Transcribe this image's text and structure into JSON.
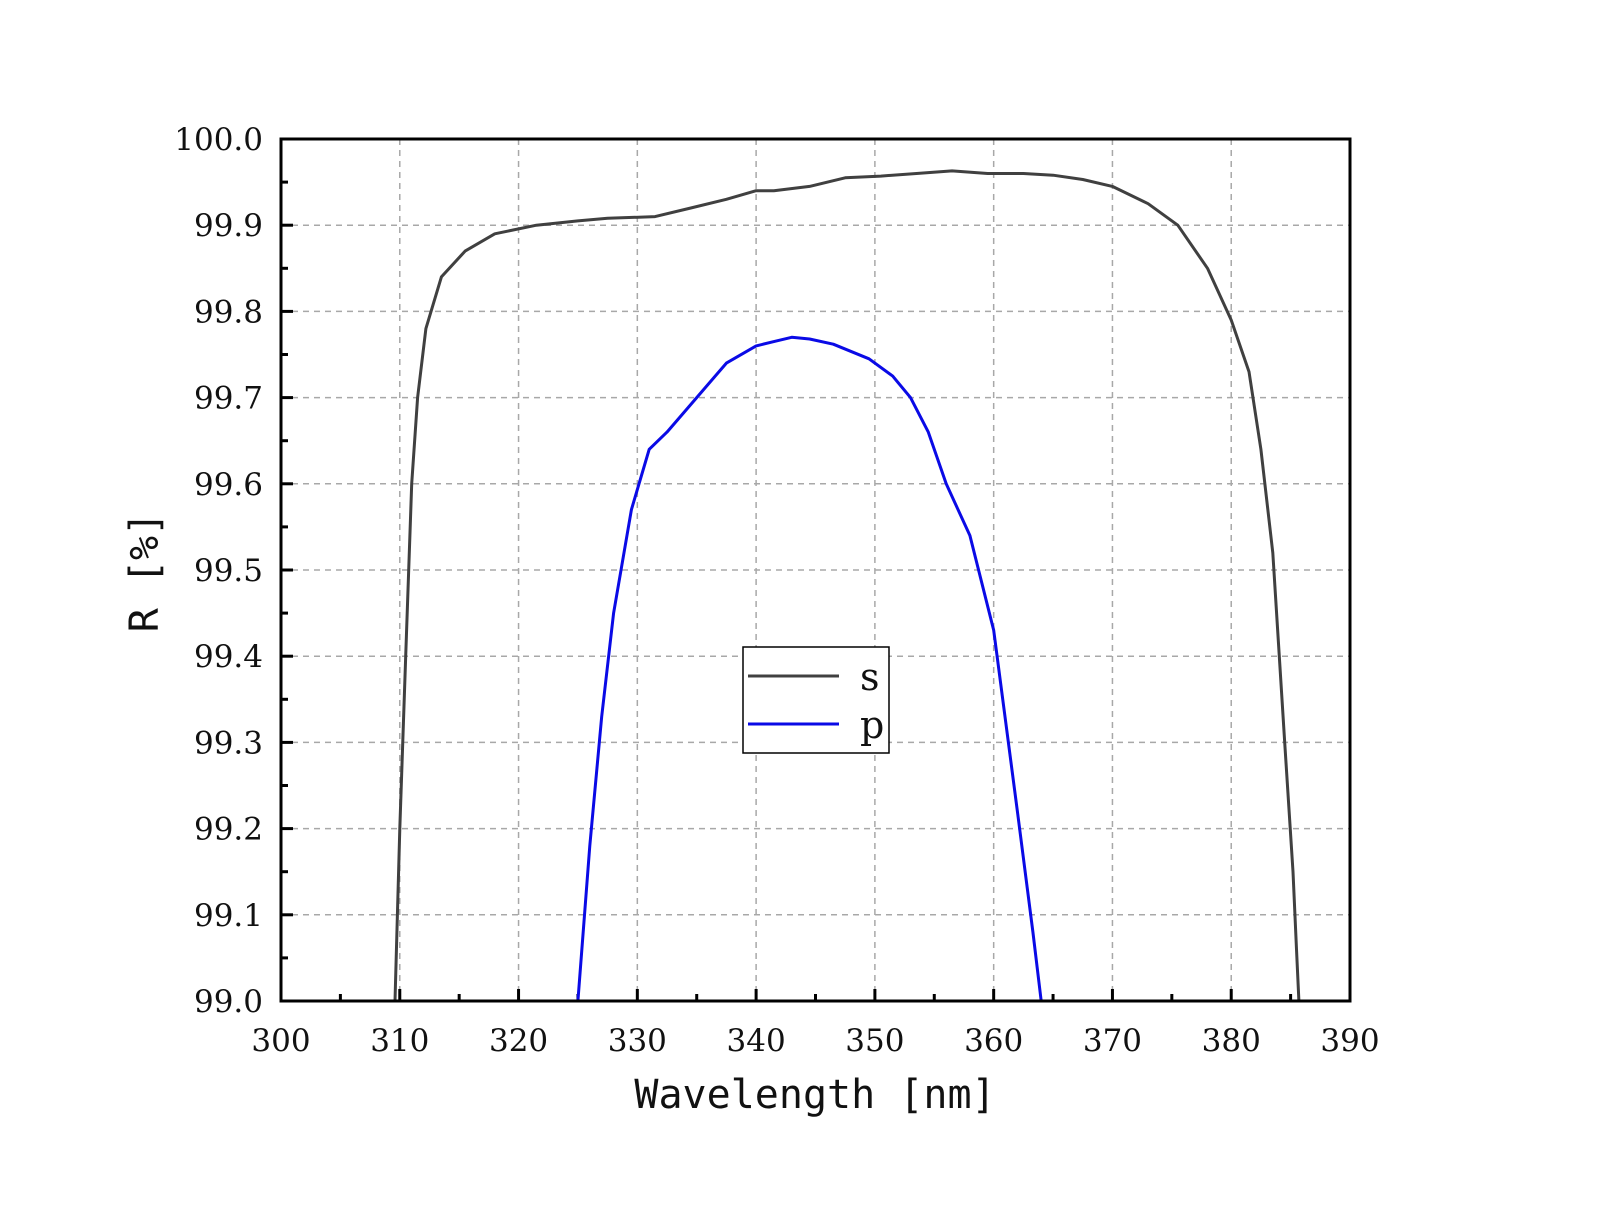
{
  "chart_data": {
    "type": "line",
    "xlabel": "Wavelength [nm]",
    "ylabel": "R [%]",
    "xlim": [
      300,
      390
    ],
    "ylim": [
      99.0,
      100.0
    ],
    "xticks": [
      "300",
      "310",
      "320",
      "330",
      "340",
      "350",
      "360",
      "370",
      "380",
      "390"
    ],
    "yticks": [
      "99.0",
      "99.1",
      "99.2",
      "99.3",
      "99.4",
      "99.5",
      "99.6",
      "99.7",
      "99.8",
      "99.9",
      "100.0"
    ],
    "grid": true,
    "legend_position": "center",
    "series": [
      {
        "name": "s",
        "color": "#404040",
        "x": [
          309.6,
          310.0,
          310.5,
          311.0,
          311.5,
          312.2,
          313.5,
          315.5,
          318.0,
          321.5,
          325.0,
          327.5,
          331.5,
          334.5,
          337.5,
          340.0,
          341.5,
          344.5,
          347.5,
          350.5,
          353.5,
          356.5,
          359.5,
          362.5,
          365.0,
          367.5,
          370.0,
          373.0,
          375.5,
          378.0,
          380.0,
          381.5,
          382.5,
          383.5,
          384.5,
          385.2,
          385.5,
          385.7
        ],
        "y": [
          99.0,
          99.2,
          99.4,
          99.6,
          99.7,
          99.78,
          99.84,
          99.87,
          99.89,
          99.9,
          99.905,
          99.908,
          99.91,
          99.92,
          99.93,
          99.94,
          99.94,
          99.945,
          99.955,
          99.957,
          99.96,
          99.963,
          99.96,
          99.96,
          99.958,
          99.953,
          99.945,
          99.925,
          99.9,
          99.85,
          99.79,
          99.73,
          99.64,
          99.52,
          99.3,
          99.15,
          99.06,
          99.0
        ]
      },
      {
        "name": "p",
        "color": "#0a0ae6",
        "x": [
          325.0,
          326.0,
          327.0,
          328.0,
          329.5,
          331.0,
          332.5,
          335.0,
          337.5,
          340.0,
          341.5,
          343.0,
          344.5,
          346.5,
          349.5,
          351.5,
          353.0,
          354.5,
          356.0,
          358.0,
          360.0,
          362.0,
          363.3,
          364.0
        ],
        "y": [
          99.0,
          99.18,
          99.33,
          99.45,
          99.57,
          99.64,
          99.66,
          99.7,
          99.74,
          99.76,
          99.765,
          99.77,
          99.768,
          99.762,
          99.745,
          99.725,
          99.7,
          99.66,
          99.6,
          99.54,
          99.43,
          99.22,
          99.08,
          99.0
        ]
      }
    ]
  }
}
